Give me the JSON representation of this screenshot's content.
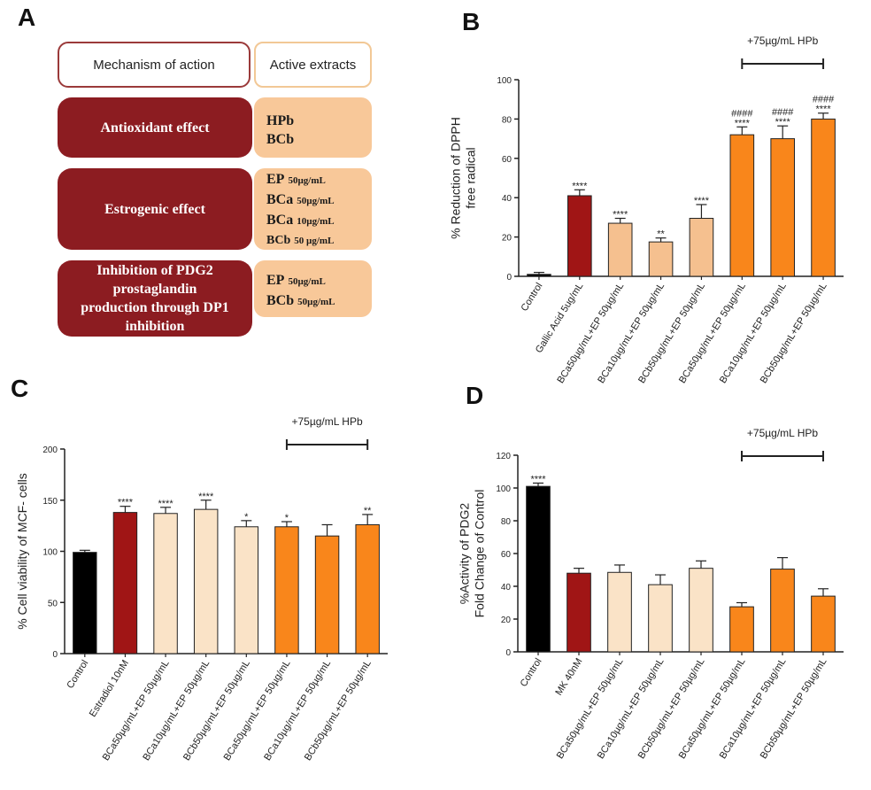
{
  "panel_a": {
    "letter": "A",
    "header_mechanism": "Mechanism of action",
    "header_extracts": "Active extracts",
    "rows": [
      {
        "mechanism": "Antioxidant effect",
        "extracts": [
          {
            "name": "HPb",
            "conc": ""
          },
          {
            "name": "BCb",
            "conc": ""
          }
        ]
      },
      {
        "mechanism": "Estrogenic effect",
        "extracts": [
          {
            "name": "EP",
            "conc": "50µg/mL"
          },
          {
            "name": "BCa",
            "conc": "50µg/mL"
          },
          {
            "name": "BCa",
            "conc": "10µg/mL"
          },
          {
            "name": "BCb",
            "conc": "50 µg/mL"
          }
        ]
      },
      {
        "mechanism": "Inhibition of PDG2 prostaglandin production through DP1 inhibition",
        "extracts": [
          {
            "name": "EP",
            "conc": "50µg/mL"
          },
          {
            "name": "BCb",
            "conc": "50µg/mL"
          }
        ]
      }
    ]
  },
  "colors": {
    "black": "#000000",
    "darkred": "#a01515",
    "lightpeach": "#fae3c7",
    "peach": "#f5c08f",
    "orange": "#f9861b",
    "mech_box": "#8c1c21",
    "ext_box": "#f8c899"
  },
  "chart_data": [
    {
      "id": "B",
      "type": "bar",
      "letter": "B",
      "ylabel_lines": [
        "% Reduction of DPPH",
        "free radical"
      ],
      "ylim": [
        0,
        100
      ],
      "yticks": [
        0,
        20,
        40,
        60,
        80,
        100
      ],
      "categories": [
        "Control",
        "Gallic Acid 5ug/mL",
        "BCa50µg/mL+EP 50µg/mL",
        "BCa10µg/mL+EP 50µg/mL",
        "BCb50µg/mL+EP 50µg/mL",
        "BCa50µg/mL+EP 50µg/mL",
        "BCa10µg/mL+EP 50µg/mL",
        "BCb50µg/mL+EP 50µg/mL"
      ],
      "values": [
        1,
        41,
        27,
        17.5,
        29.5,
        72,
        70,
        80
      ],
      "errors": [
        1,
        3,
        2.5,
        2,
        7,
        4,
        6.5,
        3
      ],
      "colors": [
        "black",
        "darkred",
        "peach",
        "peach",
        "peach",
        "orange",
        "orange",
        "orange"
      ],
      "sig_lines": [
        [
          "",
          "****",
          "****",
          "**",
          "****",
          "****",
          "****",
          "****"
        ],
        [
          "",
          "",
          "",
          "",
          "",
          "####",
          "####",
          "####"
        ]
      ],
      "bracket": {
        "label": "+75µg/mL HPb",
        "from": 5,
        "to": 7
      }
    },
    {
      "id": "C",
      "type": "bar",
      "letter": "C",
      "ylabel_lines": [
        "% Cell viability of MCF- cells"
      ],
      "ylim": [
        0,
        200
      ],
      "yticks": [
        0,
        50,
        100,
        150,
        200
      ],
      "categories": [
        "Control",
        "Estradiol 10nM",
        "BCa50µg/mL+EP 50µg/mL",
        "BCa10µg/mL+EP 50µg/mL",
        "BCb50µg/mL+EP 50µg/mL",
        "BCa50µg/mL+EP 50µg/mL",
        "BCa10µg/mL+EP 50µg/mL",
        "BCb50µg/mL+EP 50µg/mL"
      ],
      "values": [
        99,
        138,
        137,
        141,
        124,
        124,
        115,
        126
      ],
      "errors": [
        2,
        6,
        6,
        9,
        6,
        5,
        11,
        10
      ],
      "colors": [
        "black",
        "darkred",
        "lightpeach",
        "lightpeach",
        "lightpeach",
        "orange",
        "orange",
        "orange"
      ],
      "sig_lines": [
        [
          "",
          "****",
          "****",
          "****",
          "*",
          "*",
          "",
          "**"
        ]
      ],
      "bracket": {
        "label": "+75µg/mL HPb",
        "from": 5,
        "to": 7
      }
    },
    {
      "id": "D",
      "type": "bar",
      "letter": "D",
      "ylabel_lines": [
        "%Activity of PDG2",
        "Fold Change of Control"
      ],
      "ylim": [
        0,
        120
      ],
      "yticks": [
        0,
        20,
        40,
        60,
        80,
        100,
        120
      ],
      "categories": [
        "Control",
        "MK 40nM",
        "BCa50µg/mL+EP 50µg/mL",
        "BCa10µg/mL+EP 50µg/mL",
        "BCb50µg/mL+EP 50µg/mL",
        "BCa50µg/mL+EP 50µg/mL",
        "BCa10µg/mL+EP 50µg/mL",
        "BCb50µg/mL+EP 50µg/mL"
      ],
      "values": [
        101,
        48,
        48.5,
        41,
        51,
        27.5,
        50.5,
        34
      ],
      "errors": [
        2,
        3,
        4.5,
        6,
        4.5,
        2.5,
        7,
        4.5
      ],
      "colors": [
        "black",
        "darkred",
        "lightpeach",
        "lightpeach",
        "lightpeach",
        "orange",
        "orange",
        "orange"
      ],
      "sig_lines": [
        [
          "****",
          "",
          "",
          "",
          "",
          "",
          "",
          ""
        ]
      ],
      "bracket": {
        "label": "+75µg/mL HPb",
        "from": 5,
        "to": 7
      }
    }
  ]
}
